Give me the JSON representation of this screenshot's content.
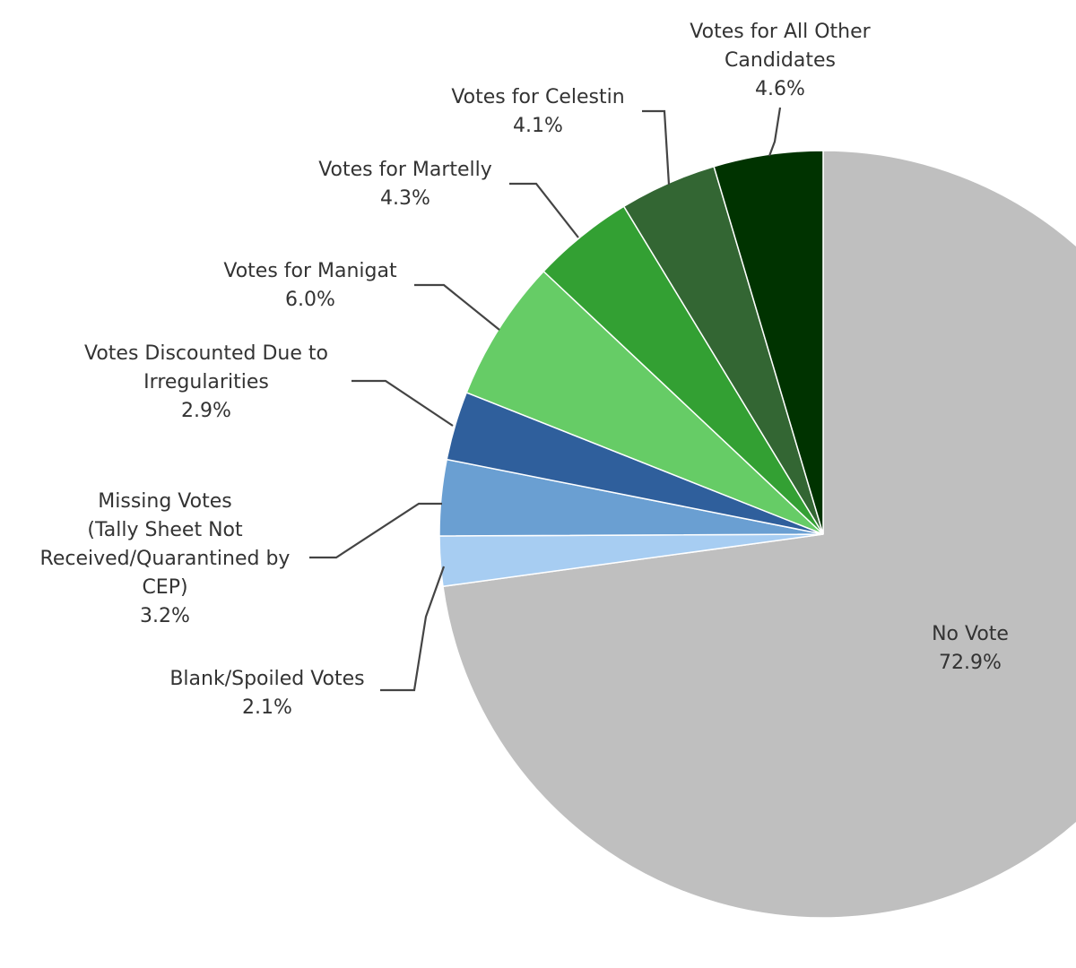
{
  "chart_data": {
    "type": "pie",
    "start": "top, clockwise",
    "slices": [
      {
        "label_lines": [
          "No Vote"
        ],
        "pct_text": "72.9%",
        "value": 72.9,
        "color": "#bfbfbf"
      },
      {
        "label_lines": [
          "Blank/Spoiled Votes"
        ],
        "pct_text": "2.1%",
        "value": 2.1,
        "color": "#a7cdf2"
      },
      {
        "label_lines": [
          "Missing Votes",
          "(Tally Sheet Not",
          "Received/Quarantined by",
          "CEP)"
        ],
        "pct_text": "3.2%",
        "value": 3.2,
        "color": "#6a9fd2"
      },
      {
        "label_lines": [
          "Votes Discounted Due to",
          "Irregularities"
        ],
        "pct_text": "2.9%",
        "value": 2.9,
        "color": "#2f5f9c"
      },
      {
        "label_lines": [
          "Votes for Manigat"
        ],
        "pct_text": "6.0%",
        "value": 6.0,
        "color": "#66cc66"
      },
      {
        "label_lines": [
          "Votes for Martelly"
        ],
        "pct_text": "4.3%",
        "value": 4.3,
        "color": "#33a033"
      },
      {
        "label_lines": [
          "Votes for Celestin"
        ],
        "pct_text": "4.1%",
        "value": 4.1,
        "color": "#336633"
      },
      {
        "label_lines": [
          "Votes for All Other",
          "Candidates"
        ],
        "pct_text": "4.6%",
        "value": 4.6,
        "color": "#003300"
      }
    ]
  }
}
